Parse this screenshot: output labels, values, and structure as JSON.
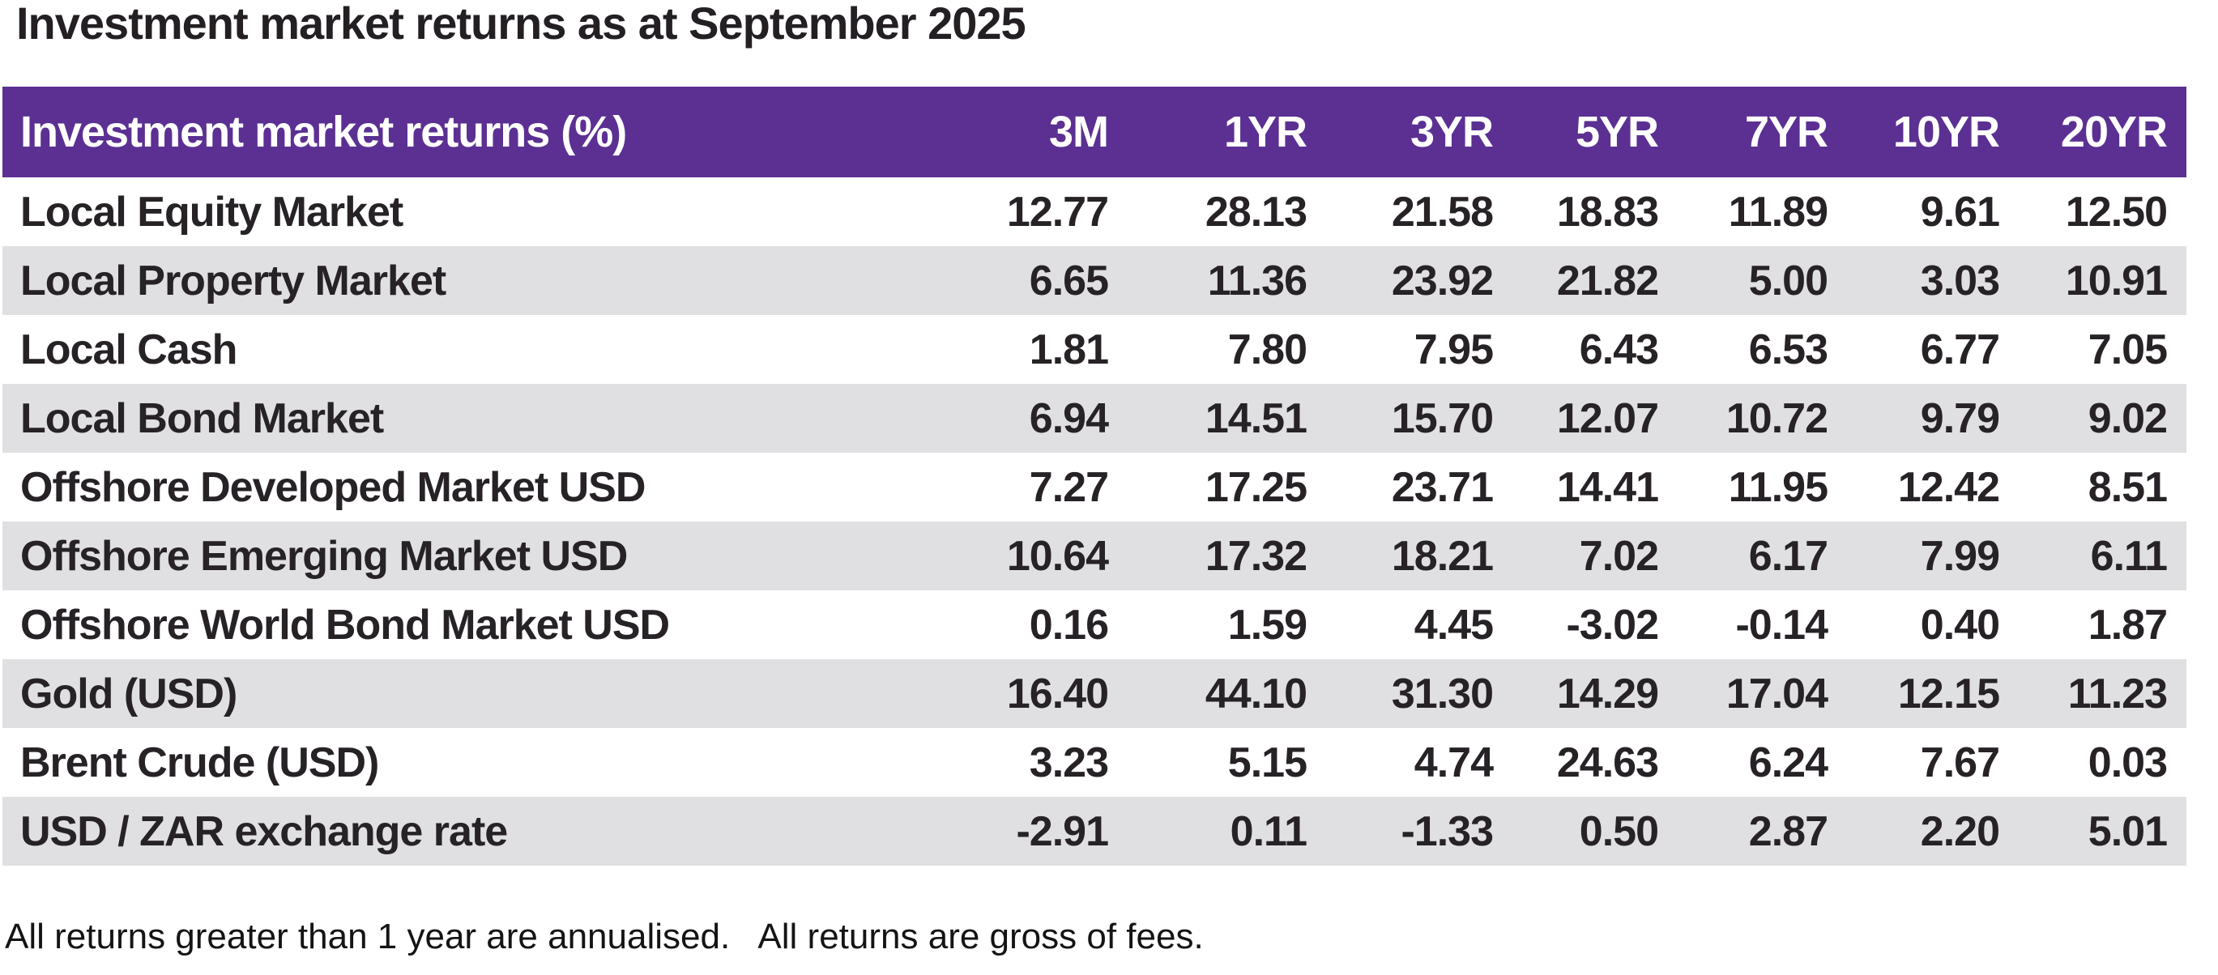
{
  "chart_data": {
    "type": "table",
    "title": "Investment market returns as at September 2025",
    "header_label": "Investment market returns (%)",
    "columns": [
      "3M",
      "1YR",
      "3YR",
      "5YR",
      "7YR",
      "10YR",
      "20YR"
    ],
    "rows": [
      {
        "label": "Local Equity Market",
        "values": [
          "12.77",
          "28.13",
          "21.58",
          "18.83",
          "11.89",
          "9.61",
          "12.50"
        ]
      },
      {
        "label": "Local Property Market",
        "values": [
          "6.65",
          "11.36",
          "23.92",
          "21.82",
          "5.00",
          "3.03",
          "10.91"
        ]
      },
      {
        "label": "Local Cash",
        "values": [
          "1.81",
          "7.80",
          "7.95",
          "6.43",
          "6.53",
          "6.77",
          "7.05"
        ]
      },
      {
        "label": "Local Bond Market",
        "values": [
          "6.94",
          "14.51",
          "15.70",
          "12.07",
          "10.72",
          "9.79",
          "9.02"
        ]
      },
      {
        "label": "Offshore Developed Market USD",
        "values": [
          "7.27",
          "17.25",
          "23.71",
          "14.41",
          "11.95",
          "12.42",
          "8.51"
        ]
      },
      {
        "label": "Offshore Emerging Market USD",
        "values": [
          "10.64",
          "17.32",
          "18.21",
          "7.02",
          "6.17",
          "7.99",
          "6.11"
        ]
      },
      {
        "label": "Offshore World Bond Market USD",
        "values": [
          "0.16",
          "1.59",
          "4.45",
          "-3.02",
          "-0.14",
          "0.40",
          "1.87"
        ]
      },
      {
        "label": "Gold (USD)",
        "values": [
          "16.40",
          "44.10",
          "31.30",
          "14.29",
          "17.04",
          "12.15",
          "11.23"
        ]
      },
      {
        "label": "Brent Crude (USD)",
        "values": [
          "3.23",
          "5.15",
          "4.74",
          "24.63",
          "6.24",
          "7.67",
          "0.03"
        ]
      },
      {
        "label": "USD / ZAR exchange rate",
        "values": [
          "-2.91",
          "0.11",
          "-1.33",
          "0.50",
          "2.87",
          "2.20",
          "5.01"
        ]
      }
    ],
    "footnote": "All returns greater than 1 year are annualised.   All returns are gross of fees.",
    "layout_hints": {
      "grid": "off",
      "row_striping": "alternate",
      "value_alignment": "right"
    }
  },
  "colors": {
    "header_bg": "#5b3092",
    "header_text": "#ffffff",
    "row_alt_bg": "#e0e0e2",
    "body_text": "#262226",
    "title_text": "#231f23",
    "page_bg": "#ffffff"
  }
}
